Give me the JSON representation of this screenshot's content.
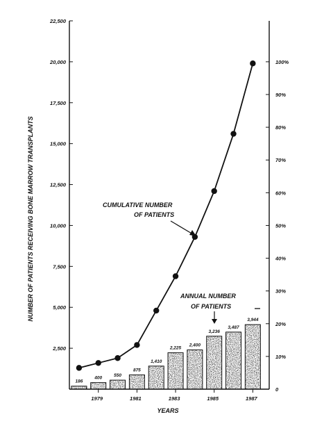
{
  "chart_data": {
    "type": "bar+line",
    "title": "",
    "xlabel": "YEARS",
    "ylabel": "NUMBER OF PATIENTS RECEIVING BONE  MARROW TRANSPLANTS",
    "ylim": [
      0,
      22500
    ],
    "y_right_lim": [
      0,
      1
    ],
    "grid": false,
    "x_ticks": [
      "1979",
      "1981",
      "1983",
      "1985",
      "1987"
    ],
    "y_ticks": [
      "2,500",
      "5,000",
      "7,500",
      "10,000",
      "12,500",
      "15,000",
      "17,500",
      "20,000",
      "22,500"
    ],
    "y_right_ticks": [
      "10%",
      "20%",
      "30%",
      "40%",
      "50%",
      "60%",
      "70%",
      "80%",
      "90%",
      "100%"
    ],
    "x": [
      1978,
      1979,
      1980,
      1981,
      1982,
      1983,
      1984,
      1985,
      1986,
      1987
    ],
    "series": [
      {
        "kind": "bar",
        "values": [
          186,
          400,
          550,
          875,
          1410,
          2225,
          2400,
          3236,
          3487,
          3944
        ],
        "labels": [
          "186",
          "400",
          "550",
          "875",
          "1,410",
          "2,225",
          "2,400",
          "3,236",
          "3,487",
          "3,944"
        ]
      },
      {
        "kind": "line",
        "values": [
          1300,
          1600,
          1900,
          2700,
          4800,
          6900,
          9300,
          12100,
          15600,
          19900
        ]
      }
    ],
    "annotations": [
      {
        "text_lines": [
          "CUMULATIVE NUMBER",
          "OF PATIENTS"
        ]
      },
      {
        "text_lines": [
          "ANNUAL NUMBER",
          "OF PATIENTS"
        ]
      }
    ]
  }
}
